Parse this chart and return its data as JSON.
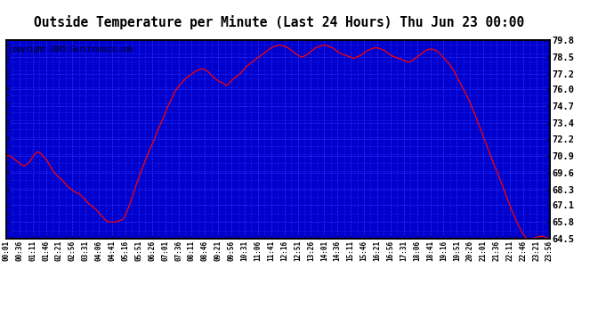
{
  "title": "Outside Temperature per Minute (Last 24 Hours) Thu Jun 23 00:00",
  "copyright": "Copyright 2005 Gurltronics.com",
  "background_color": "#0000cc",
  "outer_bg": "#ffffff",
  "line_color": "#ff0000",
  "grid_color": "#3333ff",
  "title_fontsize": 11,
  "copyright_fontsize": 6.5,
  "ylim": [
    64.5,
    79.8
  ],
  "yticks": [
    64.5,
    65.8,
    67.1,
    68.3,
    69.6,
    70.9,
    72.2,
    73.4,
    74.7,
    76.0,
    77.2,
    78.5,
    79.8
  ],
  "xtick_labels": [
    "00:01",
    "00:36",
    "01:11",
    "01:46",
    "02:21",
    "02:56",
    "03:31",
    "04:06",
    "04:41",
    "05:16",
    "05:51",
    "06:26",
    "07:01",
    "07:36",
    "08:11",
    "08:46",
    "09:21",
    "09:56",
    "10:31",
    "11:06",
    "11:41",
    "12:16",
    "12:51",
    "13:26",
    "14:01",
    "14:36",
    "15:11",
    "15:46",
    "16:21",
    "16:56",
    "17:31",
    "18:06",
    "18:41",
    "19:16",
    "19:51",
    "20:26",
    "21:01",
    "21:36",
    "22:11",
    "22:46",
    "23:21",
    "23:56"
  ],
  "temperature_data": [
    70.9,
    70.9,
    70.7,
    70.5,
    70.3,
    70.1,
    70.2,
    70.5,
    70.9,
    71.2,
    71.1,
    70.8,
    70.5,
    70.0,
    69.6,
    69.3,
    69.1,
    68.8,
    68.5,
    68.3,
    68.1,
    68.0,
    67.8,
    67.5,
    67.2,
    67.0,
    66.8,
    66.5,
    66.2,
    65.9,
    65.8,
    65.8,
    65.8,
    65.9,
    66.0,
    66.5,
    67.2,
    68.0,
    68.8,
    69.5,
    70.2,
    70.9,
    71.5,
    72.1,
    72.8,
    73.4,
    74.0,
    74.7,
    75.2,
    75.8,
    76.2,
    76.5,
    76.8,
    77.0,
    77.2,
    77.4,
    77.5,
    77.6,
    77.5,
    77.3,
    77.0,
    76.8,
    76.6,
    76.5,
    76.3,
    76.5,
    76.8,
    77.0,
    77.2,
    77.5,
    77.8,
    78.0,
    78.2,
    78.4,
    78.6,
    78.8,
    79.0,
    79.2,
    79.3,
    79.4,
    79.4,
    79.3,
    79.2,
    79.0,
    78.8,
    78.6,
    78.5,
    78.6,
    78.8,
    79.0,
    79.2,
    79.3,
    79.4,
    79.4,
    79.3,
    79.2,
    79.0,
    78.8,
    78.7,
    78.6,
    78.5,
    78.4,
    78.5,
    78.6,
    78.8,
    79.0,
    79.1,
    79.2,
    79.2,
    79.1,
    79.0,
    78.8,
    78.6,
    78.5,
    78.4,
    78.3,
    78.2,
    78.1,
    78.2,
    78.4,
    78.6,
    78.8,
    79.0,
    79.1,
    79.1,
    79.0,
    78.8,
    78.5,
    78.2,
    77.9,
    77.5,
    77.0,
    76.5,
    76.0,
    75.5,
    74.9,
    74.3,
    73.6,
    72.9,
    72.2,
    71.5,
    70.8,
    70.1,
    69.5,
    68.8,
    68.1,
    67.4,
    66.7,
    66.1,
    65.5,
    65.0,
    64.6,
    64.5,
    64.5,
    64.6,
    64.7,
    64.7,
    64.6,
    64.5
  ]
}
